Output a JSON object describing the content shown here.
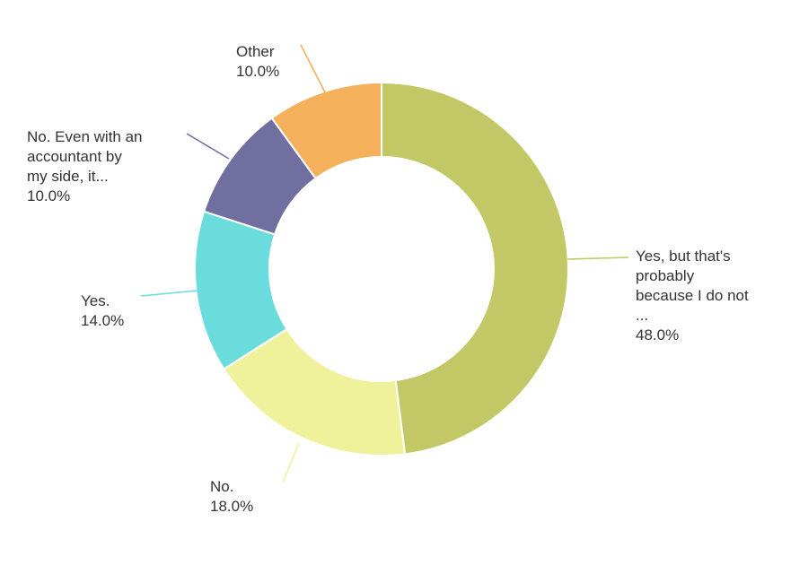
{
  "chart_data": {
    "type": "pie",
    "variant": "donut",
    "slices": [
      {
        "label_lines": [
          "Yes, but that's",
          "probably",
          "because I do not",
          "..."
        ],
        "value_text": "48.0%",
        "value": 48.0,
        "color": "#c2c865"
      },
      {
        "label_lines": [
          "No."
        ],
        "value_text": "18.0%",
        "value": 18.0,
        "color": "#f0f19b"
      },
      {
        "label_lines": [
          "Yes."
        ],
        "value_text": "14.0%",
        "value": 14.0,
        "color": "#6adcdb"
      },
      {
        "label_lines": [
          "No. Even with an",
          "accountant by",
          "my side, it..."
        ],
        "value_text": "10.0%",
        "value": 10.0,
        "color": "#716ea0"
      },
      {
        "label_lines": [
          "Other"
        ],
        "value_text": "10.0%",
        "value": 10.0,
        "color": "#f5b05c"
      }
    ],
    "legend": "none",
    "data_labels": "outside-with-leader-lines"
  }
}
